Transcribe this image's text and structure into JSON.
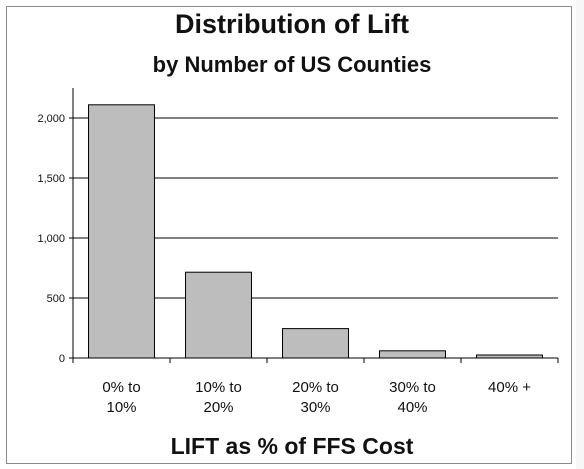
{
  "chart_data": {
    "type": "bar",
    "title": "Distribution of Lift",
    "subtitle": "by Number of US Counties",
    "xlabel": "LIFT as % of FFS Cost",
    "ylabel": "",
    "categories": [
      [
        "0% to",
        "10%"
      ],
      [
        "10% to",
        "20%"
      ],
      [
        "20% to",
        "30%"
      ],
      [
        "30% to",
        "40%"
      ],
      [
        "40% +"
      ]
    ],
    "values": [
      2110,
      715,
      245,
      60,
      25
    ],
    "ylim": [
      0,
      2250
    ],
    "yticks": [
      0,
      500,
      1000,
      1500,
      2000
    ],
    "ytick_labels": [
      "0",
      "500",
      "1,000",
      "1,500",
      "2,000"
    ],
    "grid": true,
    "bar_color": "#bdbdbd",
    "bar_edge_color": "#000000"
  }
}
